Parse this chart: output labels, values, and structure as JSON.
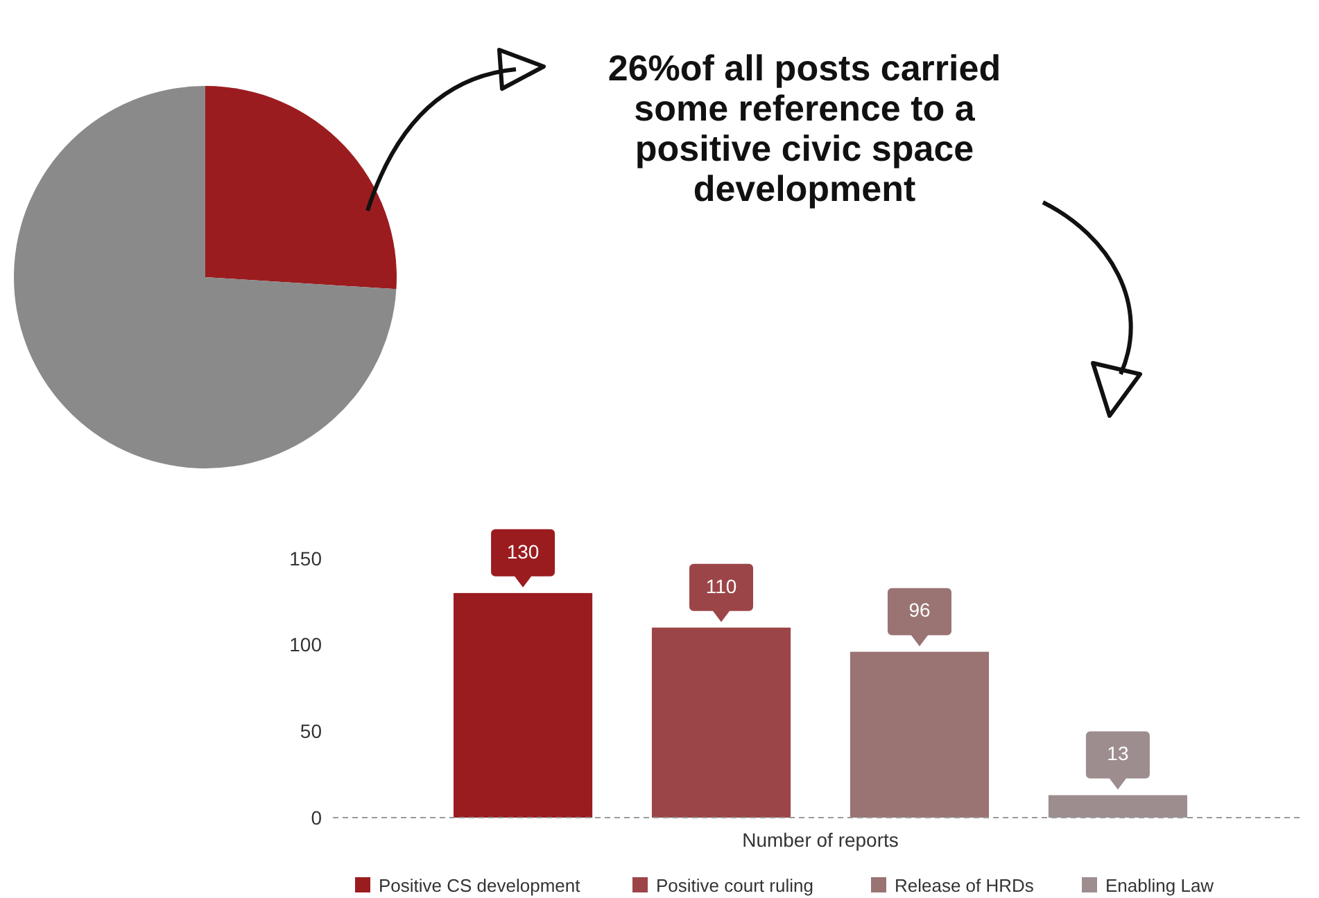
{
  "chart_data": [
    {
      "type": "pie",
      "categories": [
        null,
        null
      ],
      "values": [
        26,
        74
      ],
      "colors": [
        "#9b1c1f",
        "#8a8a8a"
      ],
      "annotations": [
        "26%of all posts carried some reference to a positive civic space development"
      ]
    },
    {
      "type": "bar",
      "categories": [
        null,
        null,
        null,
        null
      ],
      "xlabel": "Number of reports",
      "series": [
        {
          "name": "Positive CS development",
          "color": "#9b1c1f",
          "values": [
            130,
            null,
            null,
            null
          ]
        },
        {
          "name": "Positive court ruling",
          "color": "#9c4548",
          "values": [
            null,
            110,
            null,
            null
          ]
        },
        {
          "name": "Release of HRDs",
          "color": "#9a7373",
          "values": [
            null,
            null,
            96,
            null
          ]
        },
        {
          "name": "Enabling Law",
          "color": "#9d8d8f",
          "values": [
            null,
            null,
            null,
            13
          ]
        }
      ],
      "ylim": [
        0,
        150
      ],
      "yticks": [
        0,
        50,
        100,
        150
      ],
      "data_labels": true,
      "legend": "bottom"
    }
  ]
}
